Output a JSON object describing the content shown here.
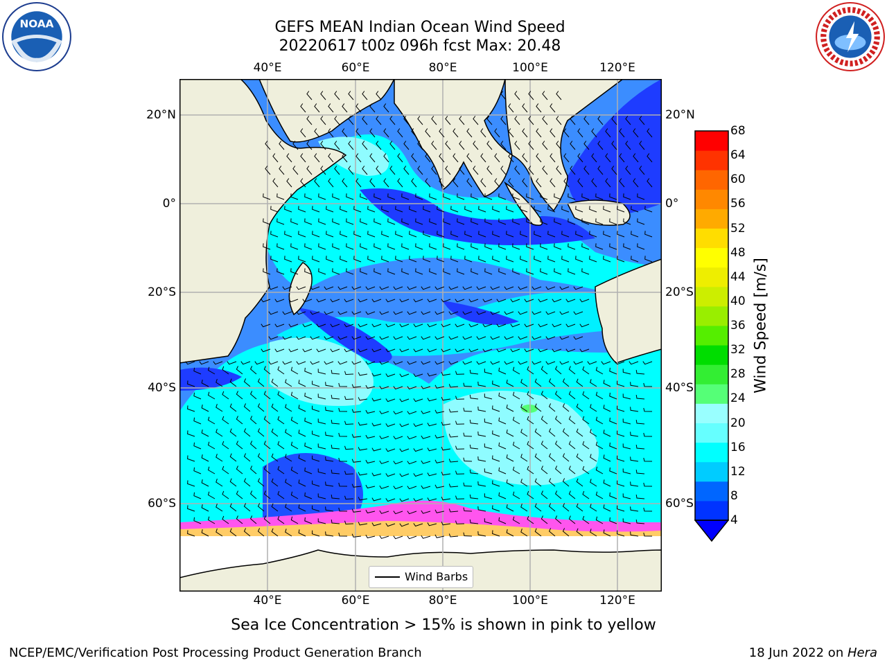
{
  "title_line1": "GEFS MEAN Indian Ocean Wind Speed",
  "title_line2": "20220617 t00z 096h fcst   Max: 20.48",
  "logos": {
    "left": "noaa-logo",
    "left_text": "NOAA",
    "right": "nws-logo"
  },
  "map": {
    "lon_ticks": [
      "40°E",
      "60°E",
      "80°E",
      "100°E",
      "120°E"
    ],
    "lat_ticks": [
      "20°N",
      "0°",
      "20°S",
      "40°S",
      "60°S"
    ],
    "colors": {
      "land": "#efefdc",
      "sea_ice": "#ffffff",
      "grid": "#b0b0b0",
      "barbs": "#000000"
    }
  },
  "colorbar": {
    "label": "Wind Speed [m/s]",
    "ticks": [
      "4",
      "8",
      "12",
      "16",
      "20",
      "24",
      "28",
      "32",
      "36",
      "40",
      "44",
      "48",
      "52",
      "56",
      "60",
      "64",
      "68"
    ],
    "colors": [
      "#0033ff",
      "#0066ff",
      "#00ccff",
      "#00ffff",
      "#66ffff",
      "#99ffff",
      "#55ff77",
      "#33ee33",
      "#00dd00",
      "#55ee00",
      "#99ee00",
      "#ccee00",
      "#eeee00",
      "#ffff00",
      "#ffdd00",
      "#ffaa00",
      "#ff8800",
      "#ff6600",
      "#ff3300",
      "#ff0000"
    ]
  },
  "legend": {
    "label": "Wind Barbs"
  },
  "caption": "Sea Ice Concentration > 15% is shown in pink to yellow",
  "footer": {
    "left": "NCEP/EMC/Verification Post Processing Product Generation Branch",
    "right_prefix": "18 Jun 2022 on ",
    "right_host": "Hera"
  }
}
